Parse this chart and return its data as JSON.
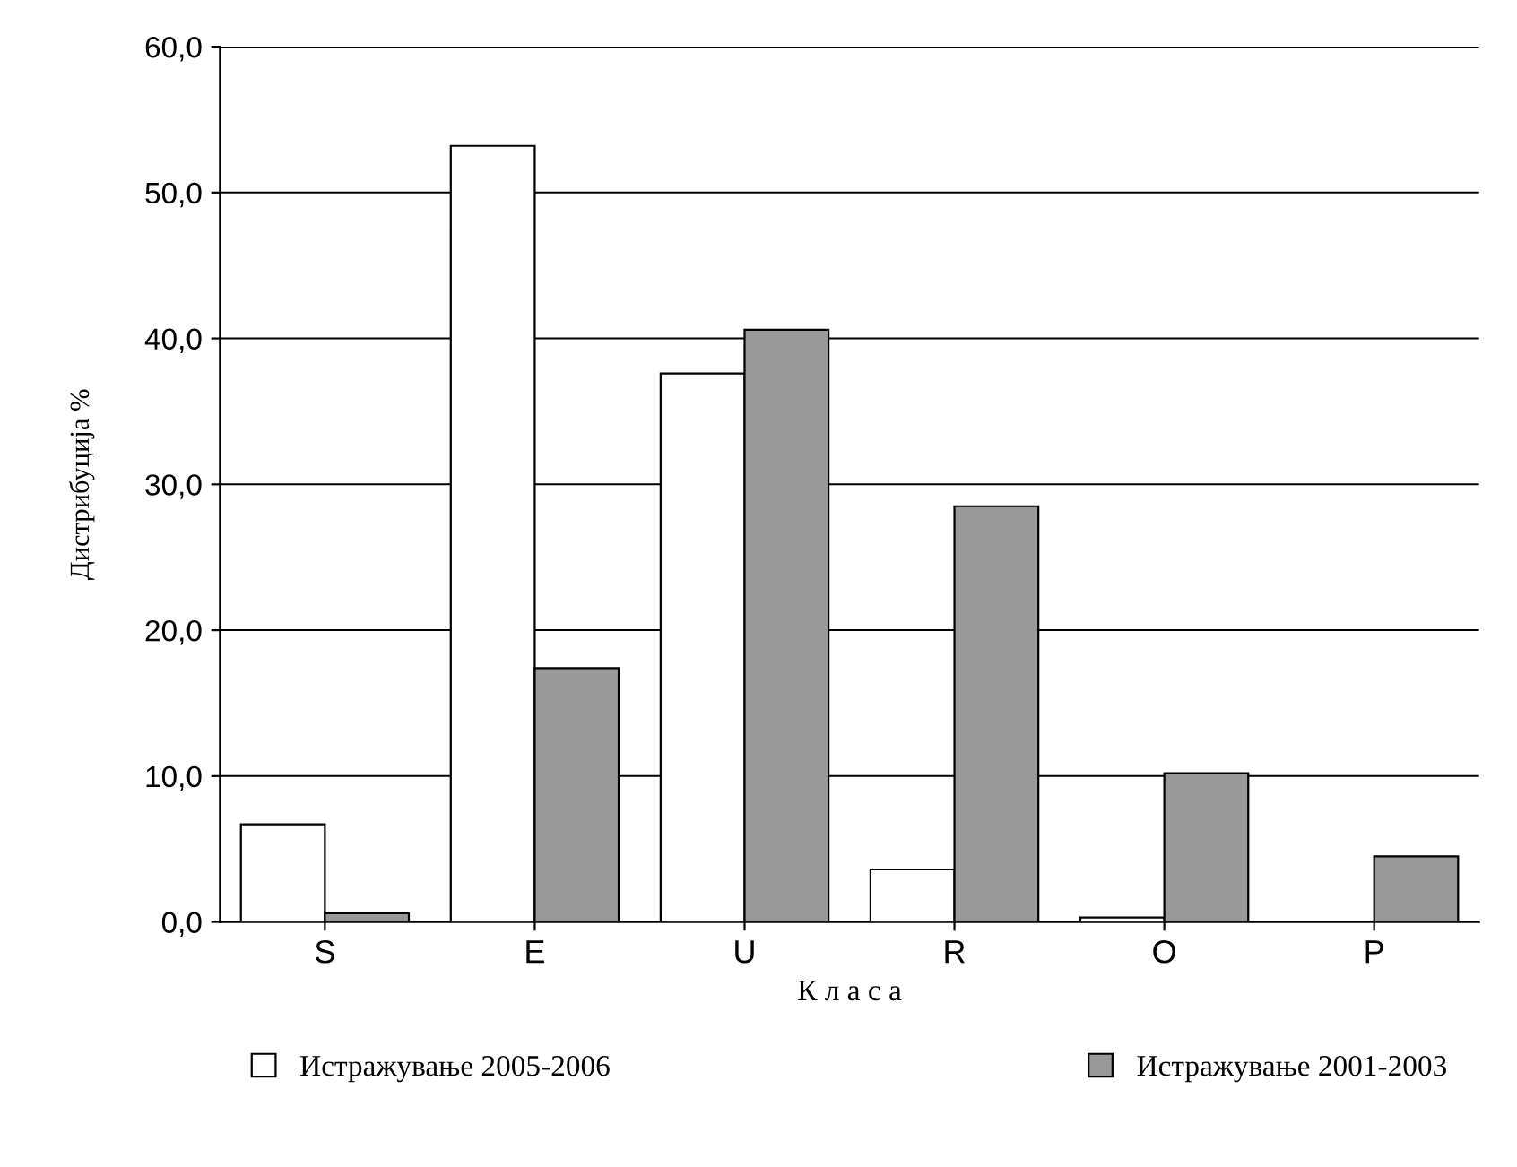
{
  "chart_data": {
    "type": "bar",
    "xlabel": "К л а с а",
    "ylabel": "Дистрибуција %",
    "categories": [
      "S",
      "E",
      "U",
      "R",
      "O",
      "P"
    ],
    "series": [
      {
        "name": "Истражување 2005-2006",
        "color": "#ffffff",
        "values": [
          6.7,
          53.2,
          37.6,
          3.6,
          0.3,
          0
        ]
      },
      {
        "name": "Истражување 2001-2003",
        "color": "#999999",
        "values": [
          0.6,
          17.4,
          40.6,
          28.5,
          10.2,
          4.5
        ]
      }
    ],
    "ylim": [
      0,
      60
    ],
    "yticks": [
      {
        "value": 0,
        "label": "0,0"
      },
      {
        "value": 10,
        "label": "10,0"
      },
      {
        "value": 20,
        "label": "20,0"
      },
      {
        "value": 30,
        "label": "30,0"
      },
      {
        "value": 40,
        "label": "40,0"
      },
      {
        "value": 50,
        "label": "50,0"
      },
      {
        "value": 60,
        "label": "60,0"
      }
    ],
    "grid": "y",
    "legend": "bottom"
  }
}
